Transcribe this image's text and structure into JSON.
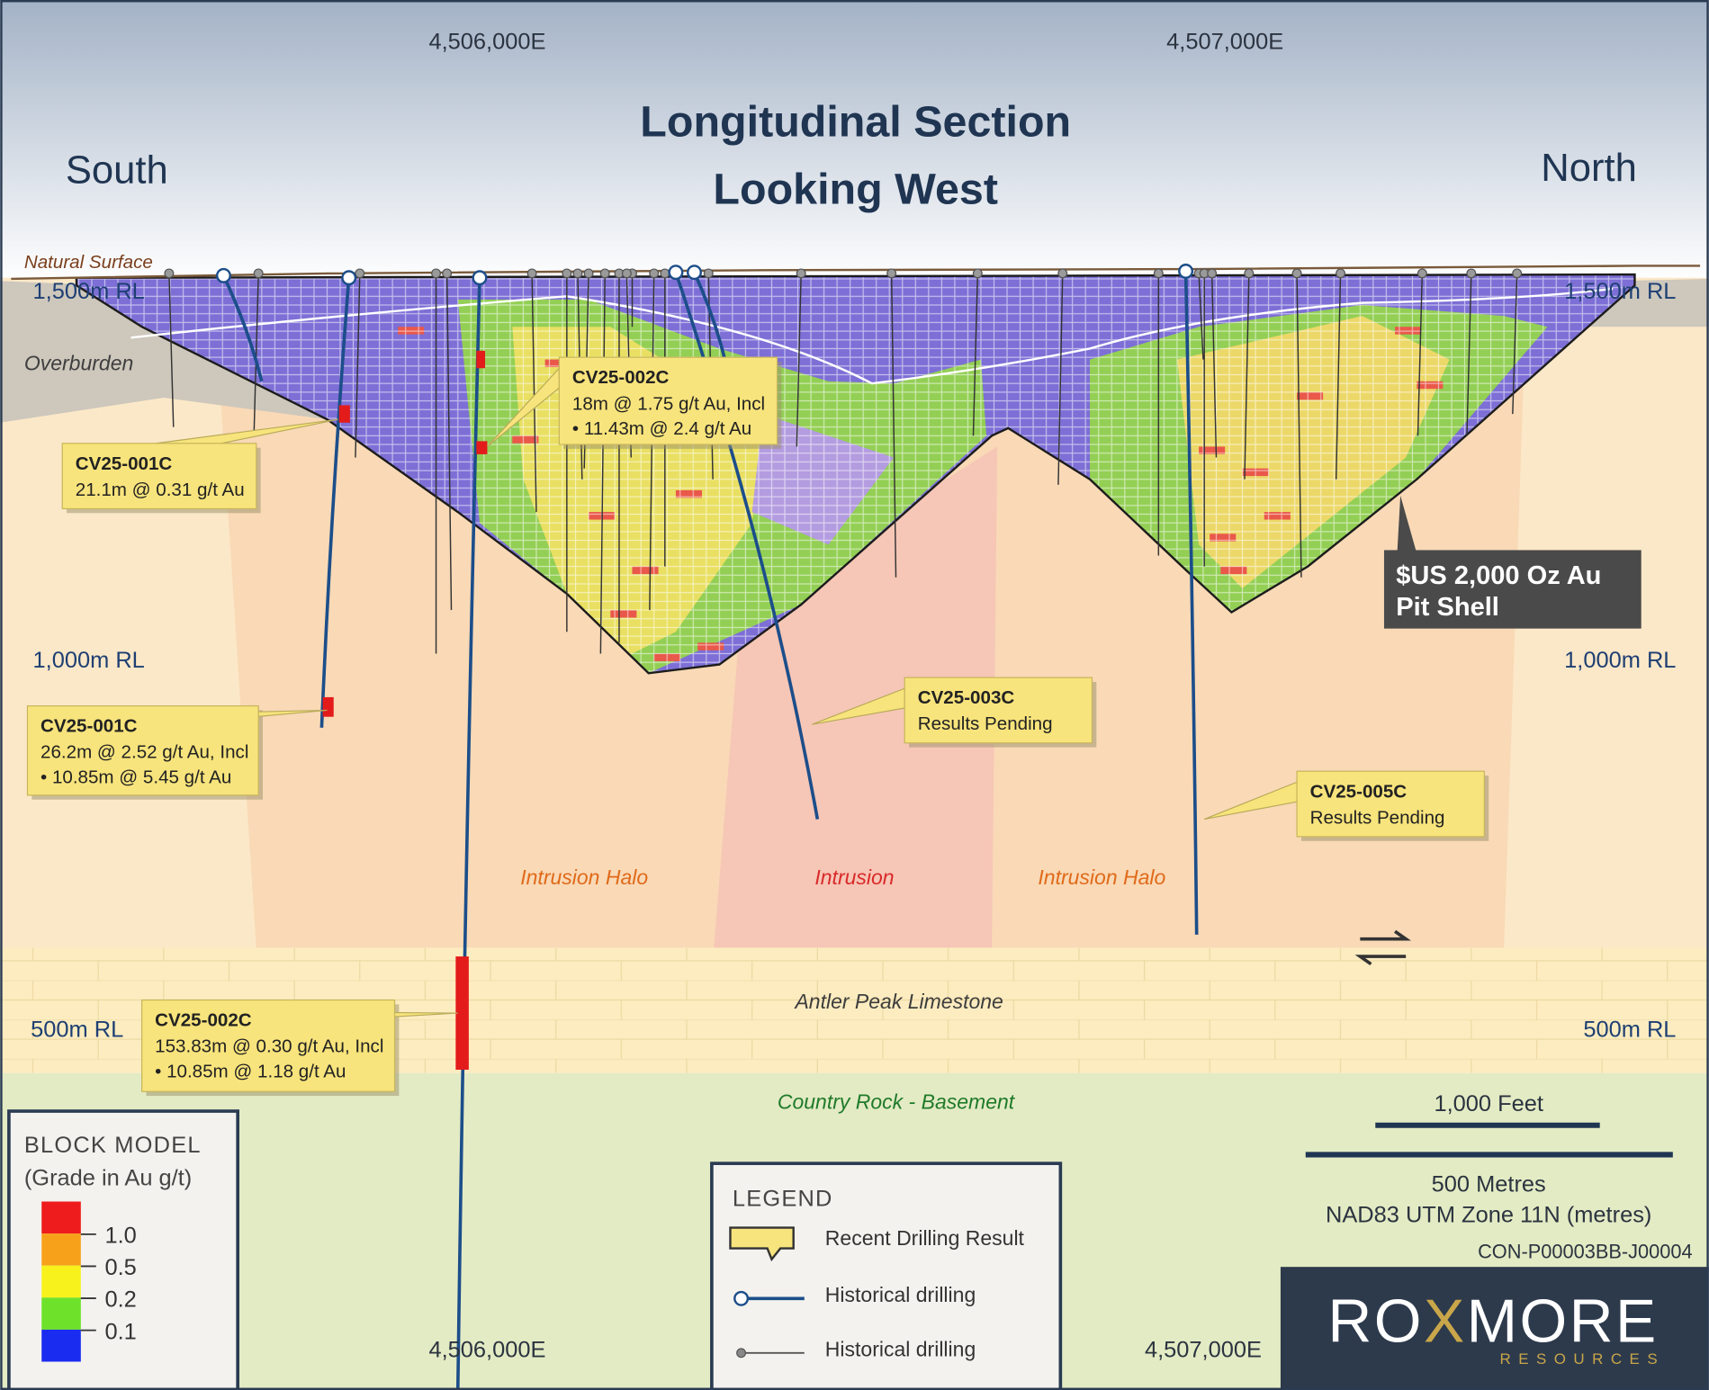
{
  "title": [
    "Longitudinal Section",
    "Looking West"
  ],
  "directions": {
    "south": "South",
    "north": "North"
  },
  "eastings": [
    "4,506,000E",
    "4,507,000E"
  ],
  "elevations": [
    "1,500m RL",
    "1,000m RL",
    "500m RL"
  ],
  "units": {
    "natural_surface": "Natural Surface",
    "overburden": "Overburden",
    "intrusion_halo": "Intrusion Halo",
    "intrusion": "Intrusion",
    "limestone": "Antler Peak Limestone",
    "basement": "Country Rock - Basement"
  },
  "callouts": [
    {
      "hole": "CV25-001C",
      "lines": [
        "21.1m @ 0.31 g/t Au"
      ]
    },
    {
      "hole": "CV25-002C",
      "lines": [
        "18m @ 1.75 g/t Au, Incl",
        "• 11.43m @ 2.4 g/t Au"
      ]
    },
    {
      "hole": "CV25-001C",
      "lines": [
        "26.2m @ 2.52 g/t Au, Incl",
        "• 10.85m @ 5.45 g/t Au"
      ]
    },
    {
      "hole": "CV25-003C",
      "lines": [
        "Results Pending"
      ]
    },
    {
      "hole": "CV25-005C",
      "lines": [
        "Results Pending"
      ]
    },
    {
      "hole": "CV25-002C",
      "lines": [
        "153.83m @ 0.30 g/t Au, Incl",
        "• 10.85m @ 1.18 g/t Au"
      ]
    }
  ],
  "pit_shell": [
    "$US 2,000 Oz Au",
    "Pit Shell"
  ],
  "block_model": {
    "title": "BLOCK MODEL",
    "subtitle": "(Grade in Au g/t)",
    "grades": [
      "1.0",
      "0.5",
      "0.2",
      "0.1"
    ]
  },
  "legend": {
    "title": "LEGEND",
    "items": [
      "Recent Drilling Result",
      "Historical drilling",
      "Historical drilling"
    ]
  },
  "scale": {
    "feet": "1,000 Feet",
    "metres": "500 Metres",
    "projection": "NAD83 UTM Zone 11N (metres)"
  },
  "drawing_id": "CON-P00003BB-J00004",
  "logo": {
    "name": [
      "RO",
      "X",
      "MORE"
    ],
    "tagline": "RESOURCES"
  }
}
